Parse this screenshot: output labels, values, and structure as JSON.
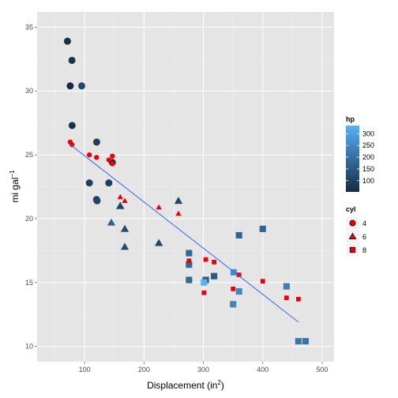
{
  "chart_data": {
    "type": "scatter",
    "xlabel": "Displacement (in",
    "xlabel_sup": "2",
    "xlabel_end": ")",
    "ylabel": "mi gal",
    "ylabel_sup": "−1",
    "xlim": [
      20,
      520
    ],
    "ylim": [
      8.8,
      36.2
    ],
    "x_ticks": [
      100,
      200,
      300,
      400,
      500
    ],
    "y_ticks": [
      10,
      15,
      20,
      25,
      30,
      35
    ],
    "grid": true,
    "panel_background": "#e5e5e5",
    "legend_position": "right",
    "points": [
      {
        "x": 160,
        "y": 21.0,
        "hp": 110,
        "cyl": 6
      },
      {
        "x": 160,
        "y": 21.0,
        "hp": 110,
        "cyl": 6
      },
      {
        "x": 108,
        "y": 22.8,
        "hp": 93,
        "cyl": 4
      },
      {
        "x": 258,
        "y": 21.4,
        "hp": 110,
        "cyl": 6
      },
      {
        "x": 360,
        "y": 18.7,
        "hp": 175,
        "cyl": 8
      },
      {
        "x": 225,
        "y": 18.1,
        "hp": 105,
        "cyl": 6
      },
      {
        "x": 360,
        "y": 14.3,
        "hp": 245,
        "cyl": 8
      },
      {
        "x": 146.7,
        "y": 24.4,
        "hp": 62,
        "cyl": 4
      },
      {
        "x": 140.8,
        "y": 22.8,
        "hp": 95,
        "cyl": 4
      },
      {
        "x": 167.6,
        "y": 19.2,
        "hp": 123,
        "cyl": 6
      },
      {
        "x": 167.6,
        "y": 17.8,
        "hp": 123,
        "cyl": 6
      },
      {
        "x": 275.8,
        "y": 16.4,
        "hp": 180,
        "cyl": 8
      },
      {
        "x": 275.8,
        "y": 17.3,
        "hp": 180,
        "cyl": 8
      },
      {
        "x": 275.8,
        "y": 15.2,
        "hp": 180,
        "cyl": 8
      },
      {
        "x": 472,
        "y": 10.4,
        "hp": 205,
        "cyl": 8
      },
      {
        "x": 460,
        "y": 10.4,
        "hp": 215,
        "cyl": 8
      },
      {
        "x": 440,
        "y": 14.7,
        "hp": 230,
        "cyl": 8
      },
      {
        "x": 78.7,
        "y": 32.4,
        "hp": 66,
        "cyl": 4
      },
      {
        "x": 75.7,
        "y": 30.4,
        "hp": 52,
        "cyl": 4
      },
      {
        "x": 71.1,
        "y": 33.9,
        "hp": 65,
        "cyl": 4
      },
      {
        "x": 120.1,
        "y": 21.5,
        "hp": 97,
        "cyl": 4
      },
      {
        "x": 318,
        "y": 15.5,
        "hp": 150,
        "cyl": 8
      },
      {
        "x": 304,
        "y": 15.2,
        "hp": 150,
        "cyl": 8
      },
      {
        "x": 350,
        "y": 13.3,
        "hp": 245,
        "cyl": 8
      },
      {
        "x": 400,
        "y": 19.2,
        "hp": 175,
        "cyl": 8
      },
      {
        "x": 79,
        "y": 27.3,
        "hp": 66,
        "cyl": 4
      },
      {
        "x": 120.3,
        "y": 26.0,
        "hp": 91,
        "cyl": 4
      },
      {
        "x": 95.1,
        "y": 30.4,
        "hp": 113,
        "cyl": 4
      },
      {
        "x": 351,
        "y": 15.8,
        "hp": 264,
        "cyl": 8
      },
      {
        "x": 145,
        "y": 19.7,
        "hp": 175,
        "cyl": 6
      },
      {
        "x": 301,
        "y": 15.0,
        "hp": 335,
        "cyl": 8
      },
      {
        "x": 121,
        "y": 21.4,
        "hp": 109,
        "cyl": 4
      }
    ],
    "overlay_points": [
      {
        "x": 75.7,
        "y": 26.0,
        "cyl": 4
      },
      {
        "x": 78.7,
        "y": 25.8,
        "cyl": 4
      },
      {
        "x": 108,
        "y": 25.0,
        "cyl": 4
      },
      {
        "x": 120.1,
        "y": 24.8,
        "cyl": 4
      },
      {
        "x": 140.8,
        "y": 24.6,
        "cyl": 4
      },
      {
        "x": 146.7,
        "y": 24.9,
        "cyl": 4
      },
      {
        "x": 146.7,
        "y": 24.3,
        "cyl": 4
      },
      {
        "x": 160,
        "y": 21.7,
        "cyl": 6
      },
      {
        "x": 167.6,
        "y": 21.4,
        "cyl": 6
      },
      {
        "x": 225,
        "y": 20.9,
        "cyl": 6
      },
      {
        "x": 258,
        "y": 20.4,
        "cyl": 6
      },
      {
        "x": 275.8,
        "y": 16.7,
        "cyl": 8
      },
      {
        "x": 301,
        "y": 14.2,
        "cyl": 8
      },
      {
        "x": 304,
        "y": 16.8,
        "cyl": 8
      },
      {
        "x": 318,
        "y": 16.6,
        "cyl": 8
      },
      {
        "x": 350,
        "y": 14.5,
        "cyl": 8
      },
      {
        "x": 360,
        "y": 15.6,
        "cyl": 8
      },
      {
        "x": 400,
        "y": 15.1,
        "cyl": 8
      },
      {
        "x": 440,
        "y": 13.8,
        "cyl": 8
      },
      {
        "x": 460,
        "y": 13.7,
        "cyl": 8
      }
    ],
    "overlay_color": "#e8000b",
    "fit_line": {
      "x1": 75.7,
      "y1": 25.8,
      "x2": 460,
      "y2": 11.9,
      "color": "#3366ff"
    },
    "legend_hp": {
      "title": "hp",
      "min": 52,
      "max": 335,
      "labels": [
        100,
        150,
        200,
        250,
        300
      ],
      "low_color": "#132b43",
      "high_color": "#56b1f7"
    },
    "legend_cyl": {
      "title": "cyl",
      "items": [
        {
          "label": "4",
          "shape": "circle"
        },
        {
          "label": "6",
          "shape": "triangle"
        },
        {
          "label": "8",
          "shape": "square"
        }
      ]
    }
  }
}
